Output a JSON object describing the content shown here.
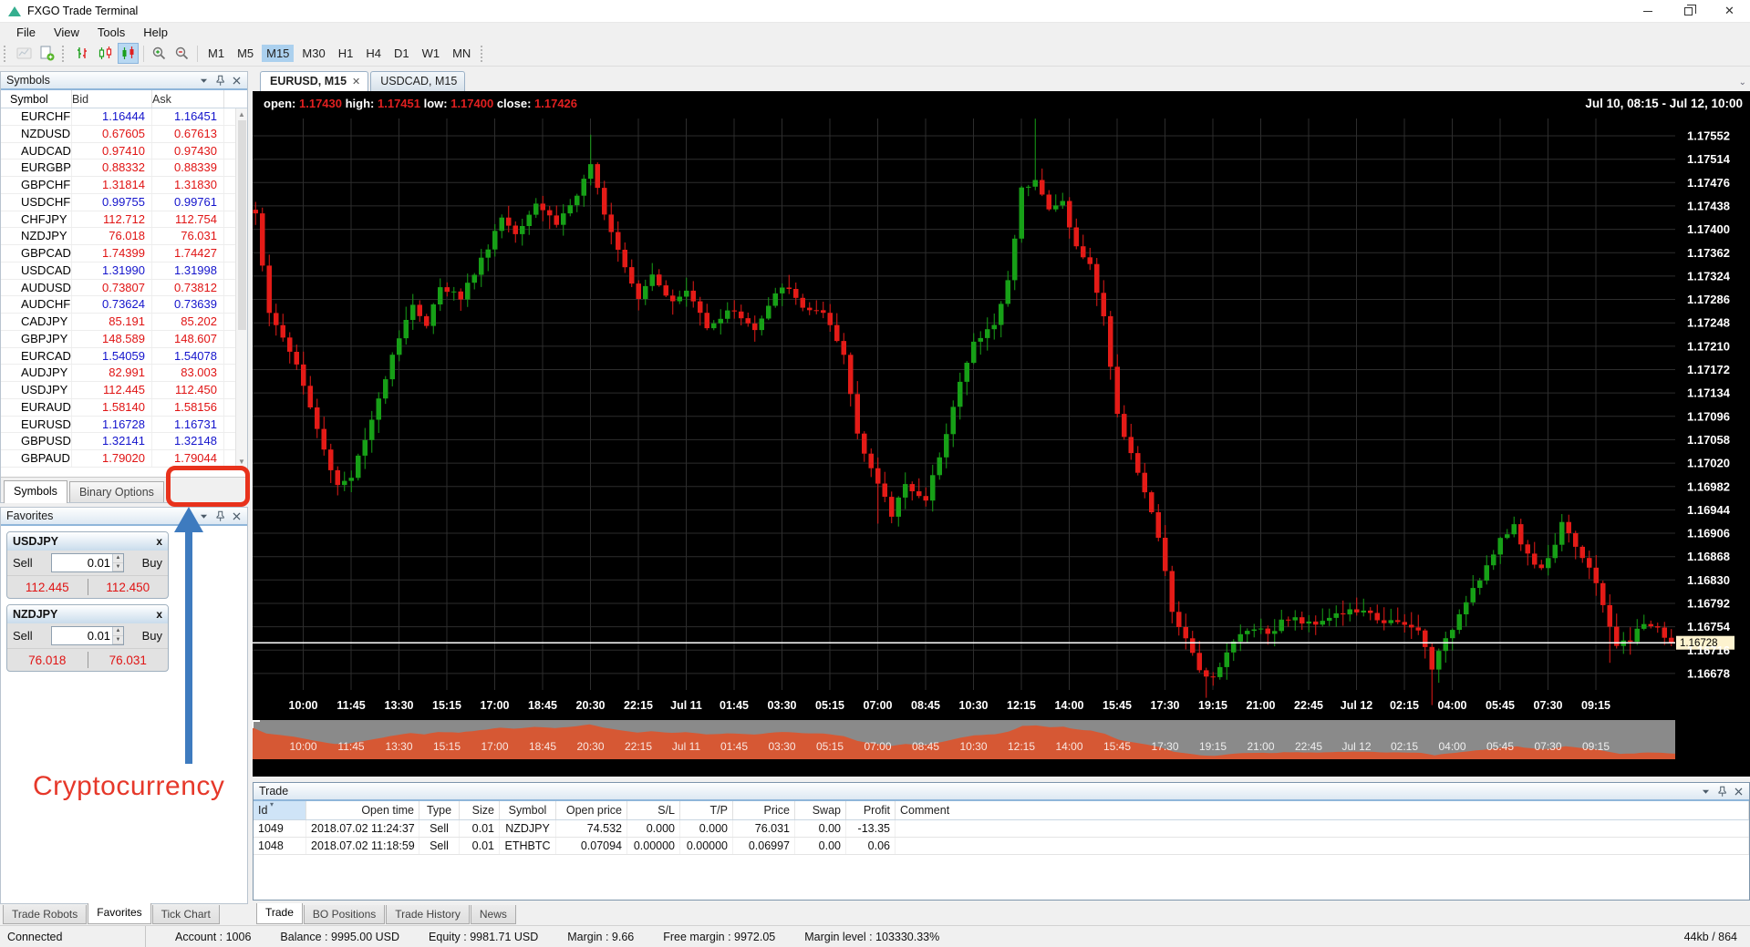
{
  "window": {
    "title": "FXGO Trade Terminal",
    "controls": [
      "minimize",
      "restore",
      "close"
    ]
  },
  "menu": {
    "items": [
      "File",
      "View",
      "Tools",
      "Help"
    ]
  },
  "toolbar": {
    "icons": [
      "chart-thumbnail",
      "new-chart",
      "bars-style",
      "candles-hollow-style",
      "candles-filled-style",
      "zoom-in",
      "zoom-out"
    ],
    "active_icon": "candles-filled-style",
    "timeframes": [
      "M1",
      "M5",
      "M15",
      "M30",
      "H1",
      "H4",
      "D1",
      "W1",
      "MN"
    ],
    "active_timeframe": "M15"
  },
  "symbols_panel": {
    "title": "Symbols",
    "header_icons": [
      "chevron-down",
      "pin",
      "close"
    ],
    "columns": [
      "Symbol",
      "Bid",
      "Ask"
    ],
    "rows": [
      {
        "symbol": "EURCHF",
        "bid": "1.16444",
        "ask": "1.16451",
        "dir": "up"
      },
      {
        "symbol": "NZDUSD",
        "bid": "0.67605",
        "ask": "0.67613",
        "dir": "down"
      },
      {
        "symbol": "AUDCAD",
        "bid": "0.97410",
        "ask": "0.97430",
        "dir": "down"
      },
      {
        "symbol": "EURGBP",
        "bid": "0.88332",
        "ask": "0.88339",
        "dir": "down"
      },
      {
        "symbol": "GBPCHF",
        "bid": "1.31814",
        "ask": "1.31830",
        "dir": "down"
      },
      {
        "symbol": "USDCHF",
        "bid": "0.99755",
        "ask": "0.99761",
        "dir": "up"
      },
      {
        "symbol": "CHFJPY",
        "bid": "112.712",
        "ask": "112.754",
        "dir": "down"
      },
      {
        "symbol": "NZDJPY",
        "bid": "76.018",
        "ask": "76.031",
        "dir": "down"
      },
      {
        "symbol": "GBPCAD",
        "bid": "1.74399",
        "ask": "1.74427",
        "dir": "down"
      },
      {
        "symbol": "USDCAD",
        "bid": "1.31990",
        "ask": "1.31998",
        "dir": "up"
      },
      {
        "symbol": "AUDUSD",
        "bid": "0.73807",
        "ask": "0.73812",
        "dir": "down"
      },
      {
        "symbol": "AUDCHF",
        "bid": "0.73624",
        "ask": "0.73639",
        "dir": "up"
      },
      {
        "symbol": "CADJPY",
        "bid": "85.191",
        "ask": "85.202",
        "dir": "down"
      },
      {
        "symbol": "GBPJPY",
        "bid": "148.589",
        "ask": "148.607",
        "dir": "down"
      },
      {
        "symbol": "EURCAD",
        "bid": "1.54059",
        "ask": "1.54078",
        "dir": "up"
      },
      {
        "symbol": "AUDJPY",
        "bid": "82.991",
        "ask": "83.003",
        "dir": "down"
      },
      {
        "symbol": "USDJPY",
        "bid": "112.445",
        "ask": "112.450",
        "dir": "down"
      },
      {
        "symbol": "EURAUD",
        "bid": "1.58140",
        "ask": "1.58156",
        "dir": "down"
      },
      {
        "symbol": "EURUSD",
        "bid": "1.16728",
        "ask": "1.16731",
        "dir": "up"
      },
      {
        "symbol": "GBPUSD",
        "bid": "1.32141",
        "ask": "1.32148",
        "dir": "up"
      },
      {
        "symbol": "GBPAUD",
        "bid": "1.79020",
        "ask": "1.79044",
        "dir": "down"
      }
    ],
    "tabs": [
      "Symbols",
      "Binary Options"
    ],
    "active_tab": "Symbols"
  },
  "favorites_panel": {
    "title": "Favorites",
    "header_icons": [
      "chevron-down",
      "pin",
      "close"
    ],
    "sell_label": "Sell",
    "buy_label": "Buy",
    "widgets": [
      {
        "symbol": "USDJPY",
        "volume": "0.01",
        "bid": "112.445",
        "ask": "112.450"
      },
      {
        "symbol": "NZDJPY",
        "volume": "0.01",
        "bid": "76.018",
        "ask": "76.031"
      }
    ],
    "tabs": [
      "Trade Robots",
      "Favorites",
      "Tick Chart"
    ],
    "active_tab": "Favorites"
  },
  "annotation": {
    "label": "Cryptocurrency",
    "box_color": "#e8321c",
    "arrow_color": "#3e7bbf",
    "text_color": "#e6382a"
  },
  "chart": {
    "tabs": [
      {
        "label": "EURUSD, M15",
        "active": true,
        "closable": true
      },
      {
        "label": "USDCAD, M15",
        "active": false,
        "closable": false
      }
    ]
  },
  "chart_data": {
    "type": "candlestick",
    "symbol": "EURUSD",
    "timeframe": "M15",
    "visible_range": "Jul 10, 08:15 - Jul 12, 10:00",
    "legend": {
      "open_label": "open:",
      "open": "1.17430",
      "high_label": "high:",
      "high": "1.17451",
      "low_label": "low:",
      "low": "1.17400",
      "close_label": "close:",
      "close": "1.17426"
    },
    "current_price": "1.16728",
    "price_axis": {
      "top": 1.17552,
      "step": 0.00038,
      "labels": [
        "1.17552",
        "1.17514",
        "1.17476",
        "1.17438",
        "1.17400",
        "1.17362",
        "1.17324",
        "1.17286",
        "1.17248",
        "1.17210",
        "1.17172",
        "1.17134",
        "1.17096",
        "1.17058",
        "1.17020",
        "1.16982",
        "1.16944",
        "1.16906",
        "1.16868",
        "1.16830",
        "1.16792",
        "1.16754",
        "1.16716",
        "1.16678"
      ]
    },
    "time_axis": {
      "ticks": [
        [
          7,
          "10:00"
        ],
        [
          14,
          "11:45"
        ],
        [
          21,
          "13:30"
        ],
        [
          28,
          "15:15"
        ],
        [
          35,
          "17:00"
        ],
        [
          42,
          "18:45"
        ],
        [
          49,
          "20:30"
        ],
        [
          56,
          "22:15"
        ],
        [
          63,
          "Jul 11"
        ],
        [
          70,
          "01:45"
        ],
        [
          77,
          "03:30"
        ],
        [
          84,
          "05:15"
        ],
        [
          91,
          "07:00"
        ],
        [
          98,
          "08:45"
        ],
        [
          105,
          "10:30"
        ],
        [
          112,
          "12:15"
        ],
        [
          119,
          "14:00"
        ],
        [
          126,
          "15:45"
        ],
        [
          133,
          "17:30"
        ],
        [
          140,
          "19:15"
        ],
        [
          147,
          "21:00"
        ],
        [
          154,
          "22:45"
        ],
        [
          161,
          "Jul 12"
        ],
        [
          168,
          "02:15"
        ],
        [
          175,
          "04:00"
        ],
        [
          182,
          "05:45"
        ],
        [
          189,
          "07:30"
        ],
        [
          196,
          "09:15"
        ]
      ]
    },
    "candle_count": 208,
    "price_path_anchors": [
      [
        0,
        1.1743
      ],
      [
        2,
        1.1726
      ],
      [
        4,
        1.17225
      ],
      [
        6,
        1.1718
      ],
      [
        8,
        1.1711
      ],
      [
        10,
        1.1704
      ],
      [
        12,
        1.16985
      ],
      [
        14,
        1.17
      ],
      [
        17,
        1.17085
      ],
      [
        20,
        1.172
      ],
      [
        23,
        1.1728
      ],
      [
        25,
        1.1724
      ],
      [
        27,
        1.1731
      ],
      [
        30,
        1.1729
      ],
      [
        33,
        1.1735
      ],
      [
        36,
        1.1742
      ],
      [
        38,
        1.17395
      ],
      [
        41,
        1.17445
      ],
      [
        44,
        1.1741
      ],
      [
        47,
        1.17455
      ],
      [
        49,
        1.175
      ],
      [
        51,
        1.1743
      ],
      [
        53,
        1.1737
      ],
      [
        56,
        1.1729
      ],
      [
        58,
        1.1733
      ],
      [
        61,
        1.1728
      ],
      [
        63,
        1.173
      ],
      [
        66,
        1.17245
      ],
      [
        70,
        1.1727
      ],
      [
        73,
        1.17235
      ],
      [
        77,
        1.1731
      ],
      [
        80,
        1.17275
      ],
      [
        83,
        1.1726
      ],
      [
        86,
        1.17195
      ],
      [
        88,
        1.1707
      ],
      [
        91,
        1.16985
      ],
      [
        93,
        1.16935
      ],
      [
        95,
        1.1699
      ],
      [
        98,
        1.16955
      ],
      [
        100,
        1.17035
      ],
      [
        103,
        1.1715
      ],
      [
        105,
        1.17215
      ],
      [
        108,
        1.17245
      ],
      [
        110,
        1.17315
      ],
      [
        112,
        1.17465
      ],
      [
        114,
        1.17485
      ],
      [
        116,
        1.1743
      ],
      [
        118,
        1.17445
      ],
      [
        120,
        1.1737
      ],
      [
        122,
        1.1734
      ],
      [
        124,
        1.1726
      ],
      [
        126,
        1.17095
      ],
      [
        128,
        1.1704
      ],
      [
        130,
        1.1697
      ],
      [
        132,
        1.169
      ],
      [
        134,
        1.1678
      ],
      [
        136,
        1.1673
      ],
      [
        138,
        1.16685
      ],
      [
        140,
        1.16672
      ],
      [
        142,
        1.16715
      ],
      [
        144,
        1.1674
      ],
      [
        146,
        1.16755
      ],
      [
        148,
        1.16745
      ],
      [
        151,
        1.1677
      ],
      [
        154,
        1.16758
      ],
      [
        157,
        1.16772
      ],
      [
        161,
        1.1678
      ],
      [
        164,
        1.16768
      ],
      [
        167,
        1.16758
      ],
      [
        170,
        1.16748
      ],
      [
        172,
        1.1669
      ],
      [
        174,
        1.1673
      ],
      [
        177,
        1.168
      ],
      [
        180,
        1.16852
      ],
      [
        182,
        1.16892
      ],
      [
        184,
        1.1692
      ],
      [
        186,
        1.16868
      ],
      [
        188,
        1.1685
      ],
      [
        190,
        1.16885
      ],
      [
        191,
        1.1693
      ],
      [
        193,
        1.16888
      ],
      [
        195,
        1.16848
      ],
      [
        197,
        1.1679
      ],
      [
        199,
        1.16725
      ],
      [
        201,
        1.1673
      ],
      [
        203,
        1.16762
      ],
      [
        205,
        1.1675
      ],
      [
        207,
        1.16728
      ]
    ],
    "wick_boosts": [
      [
        49,
        0.00045
      ],
      [
        91,
        -0.0005
      ],
      [
        114,
        0.0009
      ],
      [
        139,
        -0.0002
      ],
      [
        172,
        -0.0004
      ],
      [
        198,
        -0.00055
      ]
    ],
    "colors": {
      "up": "#17a017",
      "down": "#e41b17",
      "grid": "#2d2d2d",
      "bg": "#000000",
      "nav_bg": "#8a8a8a",
      "nav_area": "#d65834",
      "price_line": "#ffffff",
      "price_tag_bg": "#fdf3cf"
    }
  },
  "trade_panel": {
    "title": "Trade",
    "header_icons": [
      "chevron-down",
      "pin",
      "close"
    ],
    "columns": [
      "Id",
      "Open time",
      "Type",
      "Size",
      "Symbol",
      "Open price",
      "S/L",
      "T/P",
      "Price",
      "Swap",
      "Profit",
      "Comment"
    ],
    "sorted_column": "Id",
    "rows": [
      [
        "1049",
        "2018.07.02 11:24:37",
        "Sell",
        "0.01",
        "NZDJPY",
        "74.532",
        "0.000",
        "0.000",
        "76.031",
        "0.00",
        "-13.35",
        ""
      ],
      [
        "1048",
        "2018.07.02 11:18:59",
        "Sell",
        "0.01",
        "ETHBTC",
        "0.07094",
        "0.00000",
        "0.00000",
        "0.06997",
        "0.00",
        "0.06",
        ""
      ]
    ],
    "tabs": [
      "Trade",
      "BO Positions",
      "Trade History",
      "News"
    ],
    "active_tab": "Trade"
  },
  "status_bar": {
    "items": [
      "Connected",
      "Account : 1006",
      "Balance : 9995.00  USD",
      "Equity : 9981.71  USD",
      "Margin : 9.66",
      "Free margin : 9972.05",
      "Margin level : 103330.33%"
    ],
    "traffic": "44kb / 864"
  }
}
